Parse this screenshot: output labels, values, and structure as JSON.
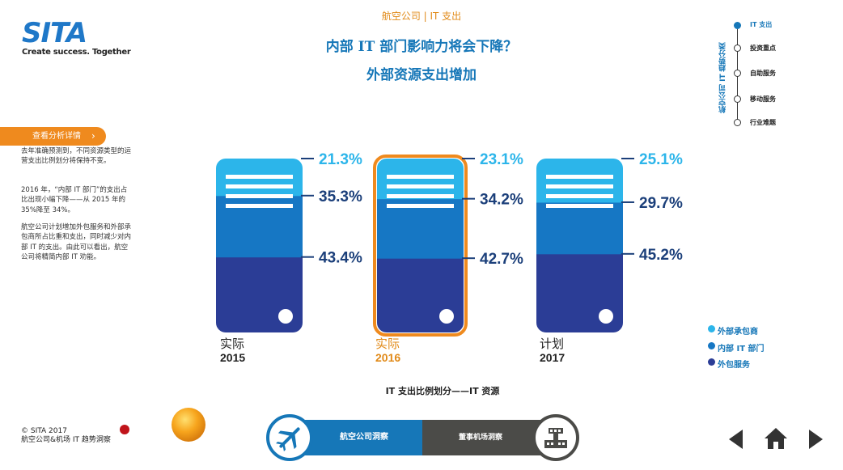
{
  "brand": {
    "logo_text": "SITA",
    "tagline": "Create success. Together"
  },
  "header": {
    "section": "航空公司 | IT 支出",
    "title_line1": "内部 IT 部门影响力将会下降？",
    "title_line2": "外部资源支出增加"
  },
  "sidebar": {
    "tab_label": "查看分析详情",
    "paragraphs": [
      "去年准确预测到，不同资源类型的运营支出比例划分将保持不变。",
      "2016 年，“内部 IT 部门”的支出占比出现小幅下降——从 2015 年的 35%降至 34%。",
      "航空公司计划增加外包服务和外部承包商所占比重和支出，同时减少对内部 IT 的支出。由此可以看出，航空公司将精简内部 IT 劝能。"
    ]
  },
  "right_nav": {
    "heading": "航空公司 IT 趋势分类",
    "items": [
      {
        "label": "IT 支出",
        "active": true
      },
      {
        "label": "投资重点",
        "active": false
      },
      {
        "label": "自助服务",
        "active": false
      },
      {
        "label": "移动服务",
        "active": false
      },
      {
        "label": "行业难题",
        "active": false
      }
    ]
  },
  "chart_data": {
    "type": "bar",
    "stacked": true,
    "categories": [
      "实际 2015",
      "实际 2016",
      "计划 2017"
    ],
    "category_labels": [
      {
        "line1": "实际",
        "line2": "2015",
        "highlight": false
      },
      {
        "line1": "实际",
        "line2": "2016",
        "highlight": true
      },
      {
        "line1": "计划",
        "line2": "2017",
        "highlight": false
      }
    ],
    "series": [
      {
        "name": "外包服务",
        "values": [
          43.4,
          42.7,
          45.2
        ],
        "color": "#2b3d96"
      },
      {
        "name": "内部 IT 部门",
        "values": [
          35.3,
          34.2,
          29.7
        ],
        "color": "#1677c4"
      },
      {
        "name": "外部承包商",
        "values": [
          21.3,
          23.1,
          25.1
        ],
        "color": "#2cb5ea"
      }
    ],
    "value_labels": [
      [
        "43.4%",
        "35.3%",
        "21.3%"
      ],
      [
        "42.7%",
        "34.2%",
        "23.1%"
      ],
      [
        "45.2%",
        "29.7%",
        "25.1%"
      ]
    ],
    "legend": [
      {
        "label": "外部承包商",
        "color": "#2cb5ea"
      },
      {
        "label": "内部 IT 部门",
        "color": "#1677c4"
      },
      {
        "label": "外包服务",
        "color": "#2b3d96"
      }
    ],
    "legend_position": "right",
    "xlabel": "IT 支出比例划分——IT 资源",
    "highlight_color": "#ef8a1e",
    "label_color": "#2cb5ea"
  },
  "footer": {
    "copyright_line1": "© SITA 2017",
    "copyright_line2": "航空公司&机场 IT 趋势洞察",
    "nav_left": "航空公司洞察",
    "nav_right": "董事机场洞察"
  },
  "icons": {
    "prev": "triangle-left-icon",
    "home": "home-icon",
    "next": "triangle-right-icon",
    "airplane": "airplane-icon",
    "airport": "airport-tower-icon"
  }
}
